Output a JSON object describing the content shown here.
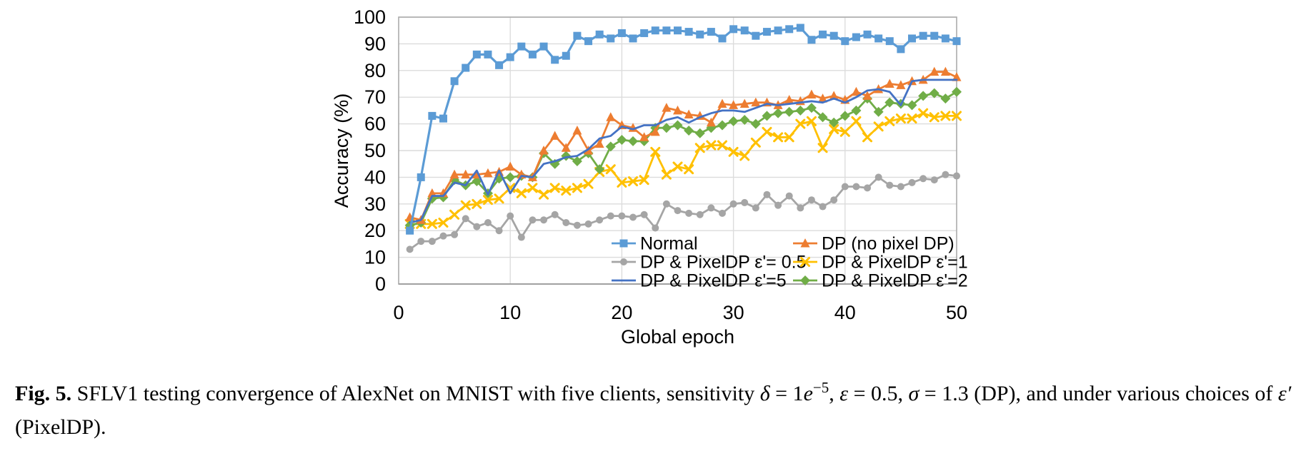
{
  "colors": {
    "gridline": "#dcdcdc",
    "plot_border": "#ababab",
    "axis_line": "#9b9b9b",
    "text": "#000000",
    "background": "#ffffff"
  },
  "chart_data": {
    "type": "line",
    "title": "",
    "xlabel": "Global epoch",
    "ylabel": "Accuracy (%)",
    "xlim": [
      0,
      50
    ],
    "ylim": [
      0,
      100
    ],
    "x_ticks": [
      0,
      10,
      20,
      30,
      40,
      50
    ],
    "y_ticks": [
      0,
      10,
      20,
      30,
      40,
      50,
      60,
      70,
      80,
      90,
      100
    ],
    "grid": true,
    "legend_position": "inside-bottom-center",
    "x": [
      1,
      2,
      3,
      4,
      5,
      6,
      7,
      8,
      9,
      10,
      11,
      12,
      13,
      14,
      15,
      16,
      17,
      18,
      19,
      20,
      21,
      22,
      23,
      24,
      25,
      26,
      27,
      28,
      29,
      30,
      31,
      32,
      33,
      34,
      35,
      36,
      37,
      38,
      39,
      40,
      41,
      42,
      43,
      44,
      45,
      46,
      47,
      48,
      49,
      50
    ],
    "series": [
      {
        "name": "Normal",
        "color": "#5B9BD5",
        "marker": "square",
        "values": [
          20,
          40,
          63,
          62,
          76,
          81,
          86,
          86,
          82,
          85,
          89,
          86,
          89,
          84,
          85.5,
          93,
          91,
          93.5,
          92,
          94,
          92,
          94,
          95,
          95,
          95,
          94.5,
          93.5,
          94.5,
          92,
          95.5,
          95,
          93,
          94.5,
          95,
          95.5,
          96,
          91.5,
          93.5,
          93,
          91,
          92.5,
          93.5,
          92,
          91,
          88,
          92,
          93,
          93,
          92,
          91
        ]
      },
      {
        "name": "DP (no pixel DP)",
        "color": "#ED7D31",
        "marker": "triangle",
        "values": [
          25,
          24,
          34,
          34,
          41,
          41,
          41,
          41.5,
          42,
          44,
          41,
          40,
          50,
          55.5,
          51,
          57.5,
          50,
          52.5,
          62.5,
          59.5,
          58.5,
          55,
          57,
          66,
          65,
          63.5,
          63,
          60.5,
          67.5,
          67,
          67.5,
          68,
          68,
          67,
          69,
          68.5,
          71,
          69.5,
          70.5,
          69,
          72,
          70.5,
          73,
          75,
          74.5,
          76,
          76.5,
          79.5,
          79.5,
          77.5
        ]
      },
      {
        "name": "DP & PixelDP ε'= 0.5",
        "color": "#A5A5A5",
        "marker": "circle",
        "values": [
          13,
          16,
          16,
          18,
          18.5,
          24.5,
          21.5,
          23,
          20,
          25.5,
          17.5,
          24,
          24,
          26,
          23,
          22,
          22.5,
          24,
          25.5,
          25.5,
          25,
          26,
          21,
          30,
          27.5,
          26.5,
          26,
          28.5,
          26.5,
          30,
          30.5,
          28.5,
          33.5,
          29.5,
          33,
          28.5,
          31.5,
          29,
          31.5,
          36.5,
          36.5,
          36,
          40,
          37,
          36.5,
          38,
          39.5,
          39,
          41,
          40.5
        ]
      },
      {
        "name": "DP & PixelDP ε'=1",
        "color": "#FFC000",
        "marker": "x",
        "values": [
          22.5,
          22.5,
          22.5,
          23,
          26,
          29.5,
          30,
          31.5,
          32,
          36,
          34,
          36,
          33.5,
          36,
          35,
          36,
          37.5,
          42,
          43,
          38,
          38.5,
          39,
          49.5,
          41,
          44,
          43,
          51,
          52,
          52,
          49.5,
          48,
          53,
          57,
          55,
          55,
          60,
          61,
          51,
          58,
          57,
          61,
          55,
          59,
          61,
          62,
          62,
          64,
          62.5,
          63,
          63
        ]
      },
      {
        "name": "DP & PixelDP ε'=5",
        "color": "#4472C4",
        "marker": "none",
        "values": [
          23,
          24,
          33,
          33,
          38,
          37,
          42.5,
          33.5,
          42.5,
          34,
          40.5,
          40,
          45,
          46,
          47.5,
          48,
          50.5,
          54.5,
          55.5,
          59,
          58,
          59.5,
          59.5,
          61.5,
          62.5,
          60.5,
          62.5,
          64,
          65,
          65,
          64.5,
          66,
          67.5,
          67,
          67.5,
          68,
          68.5,
          68,
          69.5,
          68,
          70,
          72.5,
          73,
          72,
          67,
          76,
          76.5,
          76.5,
          76.5,
          76.5
        ]
      },
      {
        "name": "DP & PixelDP ε'=2",
        "color": "#70AD47",
        "marker": "diamond",
        "values": [
          22,
          23,
          32,
          32.5,
          39,
          37,
          38.5,
          34,
          39.5,
          40,
          40.5,
          40,
          49,
          45,
          48,
          46,
          49,
          43,
          51.5,
          54,
          53.5,
          53.5,
          58.5,
          58.5,
          59.5,
          57.5,
          56.5,
          58.5,
          59.5,
          61,
          61.5,
          60,
          63,
          64,
          64.5,
          65,
          66,
          62.5,
          60.5,
          63,
          65,
          69.5,
          64.5,
          68,
          67.5,
          67,
          70.5,
          71.5,
          69.5,
          72
        ]
      }
    ],
    "draw_order": [
      2,
      3,
      5,
      1,
      4,
      0
    ],
    "legend_rows": [
      [
        0,
        1
      ],
      [
        2,
        3
      ],
      [
        4,
        5
      ]
    ]
  },
  "caption": {
    "parts": [
      {
        "t": "Fig. 5.",
        "b": true
      },
      {
        "t": " SFLV1 testing convergence of AlexNet on MNIST with five clients, sensitivity "
      },
      {
        "t": "δ",
        "i": true
      },
      {
        "t": " = 1"
      },
      {
        "t": "e",
        "i": true
      },
      {
        "t": "−5",
        "sup": true
      },
      {
        "t": ", "
      },
      {
        "t": "ε",
        "i": true
      },
      {
        "t": " = 0.5, "
      },
      {
        "t": "σ",
        "i": true
      },
      {
        "t": " = 1.3 (DP), and under various choices of "
      },
      {
        "t": "ε′",
        "i": true
      },
      {
        "t": " (PixelDP)."
      }
    ]
  }
}
